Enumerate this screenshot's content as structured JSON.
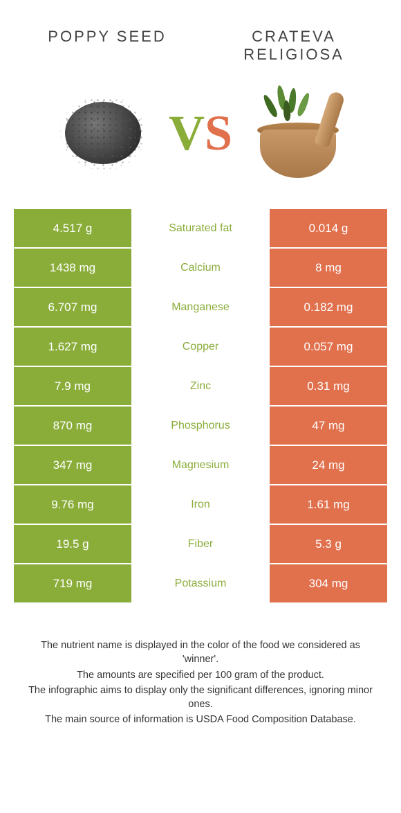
{
  "colors": {
    "left": "#8aad3a",
    "right": "#e1704d",
    "mid_bg": "#ffffff",
    "text": "#333333"
  },
  "header": {
    "left_title": "POPPY SEED",
    "right_title": "CRATEVA RELIGIOSA",
    "vs_v": "V",
    "vs_s": "S"
  },
  "table": {
    "rows": [
      {
        "left": "4.517 g",
        "label": "Saturated fat",
        "right": "0.014 g",
        "winner": "left"
      },
      {
        "left": "1438 mg",
        "label": "Calcium",
        "right": "8 mg",
        "winner": "left"
      },
      {
        "left": "6.707 mg",
        "label": "Manganese",
        "right": "0.182 mg",
        "winner": "left"
      },
      {
        "left": "1.627 mg",
        "label": "Copper",
        "right": "0.057 mg",
        "winner": "left"
      },
      {
        "left": "7.9 mg",
        "label": "Zinc",
        "right": "0.31 mg",
        "winner": "left"
      },
      {
        "left": "870 mg",
        "label": "Phosphorus",
        "right": "47 mg",
        "winner": "left"
      },
      {
        "left": "347 mg",
        "label": "Magnesium",
        "right": "24 mg",
        "winner": "left"
      },
      {
        "left": "9.76 mg",
        "label": "Iron",
        "right": "1.61 mg",
        "winner": "left"
      },
      {
        "left": "19.5 g",
        "label": "Fiber",
        "right": "5.3 g",
        "winner": "left"
      },
      {
        "left": "719 mg",
        "label": "Potassium",
        "right": "304 mg",
        "winner": "left"
      }
    ]
  },
  "footnotes": {
    "l1": "The nutrient name is displayed in the color of the food we considered as 'winner'.",
    "l2": "The amounts are specified per 100 gram of the product.",
    "l3": "The infographic aims to display only the significant differences, ignoring minor ones.",
    "l4": "The main source of information is USDA Food Composition Database."
  }
}
